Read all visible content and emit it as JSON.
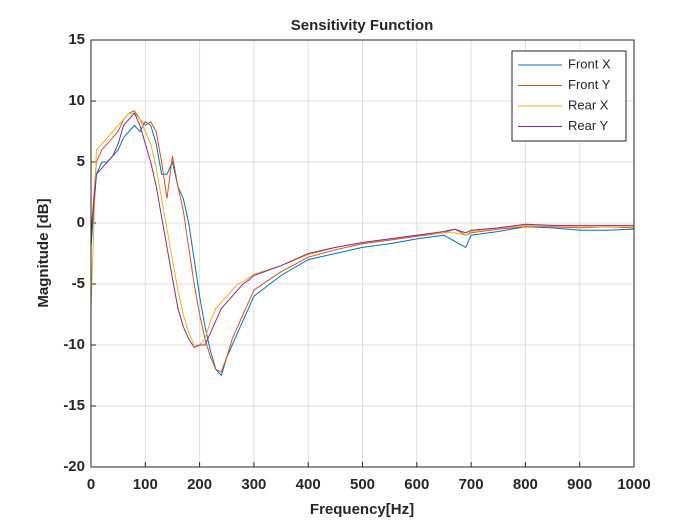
{
  "chart_data": {
    "type": "line",
    "title": "Sensitivity Function",
    "x_label": "Frequency[Hz]",
    "y_label": "Magnitude [dB]",
    "x": [
      0,
      10,
      20,
      30,
      40,
      50,
      60,
      70,
      80,
      90,
      100,
      110,
      120,
      130,
      140,
      150,
      160,
      170,
      180,
      190,
      200,
      210,
      220,
      230,
      240,
      250,
      260,
      270,
      280,
      290,
      300,
      350,
      400,
      450,
      500,
      550,
      600,
      650,
      670,
      690,
      700,
      750,
      800,
      850,
      900,
      950,
      1000
    ],
    "series": [
      {
        "name": "Front X",
        "color": "#0072BD",
        "values": [
          -2,
          4,
          5,
          5,
          5.5,
          6,
          7,
          7.5,
          8,
          7.5,
          8.3,
          8,
          6.5,
          4,
          4,
          5,
          3,
          2,
          0,
          -3,
          -6,
          -8.5,
          -10.5,
          -12,
          -12.5,
          -11,
          -10,
          -9,
          -8,
          -7,
          -6,
          -4.3,
          -3,
          -2.5,
          -2,
          -1.7,
          -1.3,
          -1,
          -1.5,
          -2,
          -1,
          -0.7,
          -0.3,
          -0.4,
          -0.6,
          -0.6,
          -0.5
        ]
      },
      {
        "name": "Front Y",
        "color": "#D95319",
        "values": [
          -1,
          5,
          6,
          6.5,
          7,
          7.5,
          8.5,
          9,
          9.2,
          8.5,
          8,
          8.3,
          7.5,
          5,
          2,
          5.5,
          3,
          1,
          -2,
          -5,
          -7.5,
          -9.5,
          -11,
          -12,
          -12.2,
          -11,
          -9.5,
          -8.5,
          -7.5,
          -6.5,
          -5.5,
          -4,
          -2.8,
          -2.2,
          -1.7,
          -1.4,
          -1.1,
          -0.8,
          -0.5,
          -1,
          -0.8,
          -0.5,
          -0.3,
          -0.3,
          -0.4,
          -0.3,
          -0.4
        ]
      },
      {
        "name": "Rear X",
        "color": "#EDB120",
        "values": [
          -7,
          6,
          6.5,
          7,
          7.5,
          8,
          8.5,
          9,
          9,
          8.5,
          7.5,
          6.5,
          4.5,
          2,
          -0.5,
          -3,
          -5.5,
          -7.5,
          -9,
          -10,
          -10,
          -9.5,
          -8,
          -7,
          -6.5,
          -6,
          -5.5,
          -5,
          -4.8,
          -4.5,
          -4.2,
          -3.5,
          -2.6,
          -2,
          -1.6,
          -1.3,
          -1,
          -0.8,
          -0.8,
          -1,
          -0.7,
          -0.4,
          -0.2,
          -0.2,
          -0.3,
          -0.3,
          -0.3
        ]
      },
      {
        "name": "Rear Y",
        "color": "#7E2F8E",
        "values": [
          -1,
          4,
          4.5,
          5,
          5.5,
          6.5,
          8,
          8.5,
          9,
          8,
          6.5,
          5,
          3,
          0.5,
          -2,
          -4.5,
          -7,
          -8.5,
          -9.5,
          -10.2,
          -10,
          -10,
          -9,
          -8,
          -7,
          -6.5,
          -6,
          -5.5,
          -5,
          -4.7,
          -4.3,
          -3.5,
          -2.5,
          -2,
          -1.6,
          -1.3,
          -1,
          -0.7,
          -0.5,
          -0.8,
          -0.6,
          -0.4,
          -0.1,
          -0.2,
          -0.2,
          -0.2,
          -0.2
        ]
      }
    ],
    "xlim": [
      0,
      1000
    ],
    "xticks": [
      0,
      100,
      200,
      300,
      400,
      500,
      600,
      700,
      800,
      900,
      1000
    ],
    "ylim": [
      -20,
      15
    ],
    "yticks": [
      -20,
      -15,
      -10,
      -5,
      0,
      5,
      10,
      15
    ],
    "grid": true,
    "legend": "northeast"
  }
}
